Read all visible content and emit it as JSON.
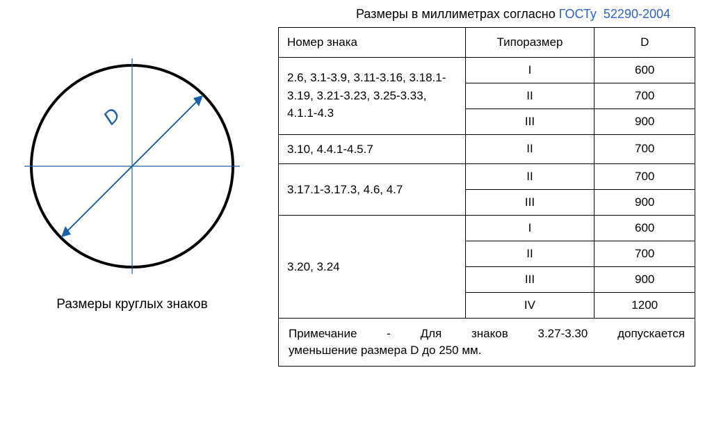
{
  "header": {
    "prefix": "Размеры в миллиметрах согласно ",
    "link": "ГОСТу",
    "link_num": "52290-2004"
  },
  "diagram": {
    "circle_stroke": "#000",
    "arrow_color": "#1b5fa8",
    "label": "D",
    "caption": "Размеры круглых знаков"
  },
  "table": {
    "headers": [
      "Номер знака",
      "Типоразмер",
      "D"
    ],
    "groups": [
      {
        "sign": "2.6, 3.1-3.9, 3.11-3.16, 3.18.1-3.19, 3.21-3.23, 3.25-3.33, 4.1.1-4.3",
        "rows": [
          {
            "size": "I",
            "d": "600"
          },
          {
            "size": "II",
            "d": "700"
          },
          {
            "size": "III",
            "d": "900"
          }
        ]
      },
      {
        "sign": "3.10, 4.4.1-4.5.7",
        "rows": [
          {
            "size": "II",
            "d": "700"
          }
        ]
      },
      {
        "sign": "3.17.1-3.17.3, 4.6, 4.7",
        "rows": [
          {
            "size": "II",
            "d": "700"
          },
          {
            "size": "III",
            "d": "900"
          }
        ]
      },
      {
        "sign": "3.20, 3.24",
        "rows": [
          {
            "size": "I",
            "d": "600"
          },
          {
            "size": "II",
            "d": "700"
          },
          {
            "size": "III",
            "d": "900"
          },
          {
            "size": "IV",
            "d": "1200"
          }
        ]
      }
    ],
    "note_words": [
      "Примечание",
      "-",
      "Для",
      "знаков",
      "3.27-3.30",
      "допускается"
    ],
    "note_line2": "уменьшение размера D до 250 мм."
  }
}
